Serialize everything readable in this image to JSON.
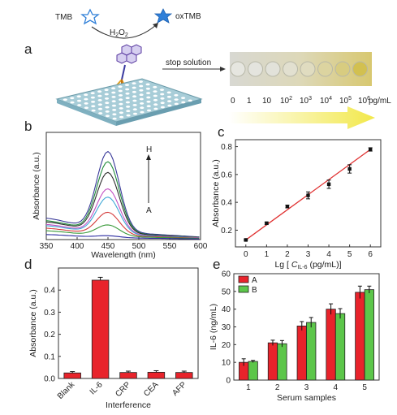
{
  "panels": {
    "a": {
      "letter": "a",
      "tmb": "TMB",
      "oxtmb": "oxTMB",
      "h2o2_h": "H",
      "h2o2_sub1": "2",
      "h2o2_o": "O",
      "h2o2_sub2": "2",
      "stop_solution": "stop solution",
      "concentrations": [
        "0",
        "1",
        "10",
        "10",
        "10",
        "10",
        "10",
        "10"
      ],
      "concentration_exps": [
        "",
        "",
        "",
        "2",
        "3",
        "4",
        "5",
        "6"
      ],
      "unit": "pg/mL",
      "colors": {
        "accent_arrow": "#f2e84a",
        "plate": "#a8cdd8"
      }
    },
    "b": {
      "letter": "b"
    },
    "c": {
      "letter": "c"
    },
    "d": {
      "letter": "d"
    },
    "e": {
      "letter": "e"
    }
  },
  "chart_data": [
    {
      "id": "b",
      "type": "line",
      "xlabel": "Wavelength (nm)",
      "ylabel": "Absorbance (a.u.)",
      "xlim": [
        350,
        600
      ],
      "ylim": [
        0,
        0.85
      ],
      "xticks": [
        350,
        400,
        450,
        500,
        550,
        600
      ],
      "annotation_top": "H",
      "annotation_bottom": "A",
      "peak_x": 450,
      "series": [
        {
          "color": "#3a3a9a",
          "peak": 0.78,
          "base": 0.17
        },
        {
          "color": "#1f8a3a",
          "peak": 0.69,
          "base": 0.15
        },
        {
          "color": "#2f2f2f",
          "peak": 0.6,
          "base": 0.14
        },
        {
          "color": "#c24fc2",
          "peak": 0.46,
          "base": 0.12
        },
        {
          "color": "#3fa8d6",
          "peak": 0.39,
          "base": 0.11
        },
        {
          "color": "#d43a3a",
          "peak": 0.26,
          "base": 0.09
        },
        {
          "color": "#3a9a3a",
          "peak": 0.15,
          "base": 0.07
        },
        {
          "color": "#2a2aa0",
          "peak": 0.05,
          "base": 0.04
        }
      ]
    },
    {
      "id": "c",
      "type": "scatter",
      "xlabel_prefix": "Lg [ ",
      "xlabel_c": "C",
      "xlabel_sub": "IL-6",
      "xlabel_suffix": " (pg/mL)]",
      "ylabel": "Absorbance (a.u.)",
      "xlim": [
        -0.5,
        6.5
      ],
      "ylim": [
        0.08,
        0.85
      ],
      "xticks": [
        0,
        1,
        2,
        3,
        4,
        5,
        6
      ],
      "yticks": [
        0.2,
        0.4,
        0.6,
        0.8
      ],
      "x": [
        0,
        1,
        2,
        3,
        4,
        5,
        6
      ],
      "y": [
        0.13,
        0.25,
        0.37,
        0.45,
        0.53,
        0.64,
        0.78
      ],
      "err": [
        0.005,
        0.008,
        0.01,
        0.025,
        0.03,
        0.03,
        0.012
      ],
      "fit": {
        "x": [
          0,
          6
        ],
        "y": [
          0.13,
          0.78
        ],
        "color": "#e03030"
      }
    },
    {
      "id": "d",
      "type": "bar",
      "xlabel": "Interference",
      "ylabel": "Absorbance (a.u.)",
      "ylim": [
        0,
        0.5
      ],
      "yticks": [
        0.0,
        0.1,
        0.2,
        0.3,
        0.4
      ],
      "categories": [
        "Blank",
        "IL-6",
        "CRP",
        "CEA",
        "AFP"
      ],
      "values": [
        0.025,
        0.445,
        0.027,
        0.028,
        0.027
      ],
      "errors": [
        0.006,
        0.013,
        0.006,
        0.007,
        0.006
      ],
      "color": "#e8232b"
    },
    {
      "id": "e",
      "type": "bar",
      "xlabel": "Serum samples",
      "ylabel": "IL-6 (ng/mL)",
      "ylim": [
        0,
        60
      ],
      "yticks": [
        0,
        10,
        20,
        30,
        40,
        50,
        60
      ],
      "categories": [
        "1",
        "2",
        "3",
        "4",
        "5"
      ],
      "series": [
        {
          "name": "A",
          "color": "#e8232b",
          "values": [
            10,
            21,
            30.5,
            40,
            49.5
          ],
          "errors": [
            2,
            1.5,
            2.5,
            3,
            3.5
          ]
        },
        {
          "name": "B",
          "color": "#5cc64a",
          "values": [
            10.5,
            20.5,
            32.5,
            37.5,
            51
          ],
          "errors": [
            0.6,
            1.8,
            2.8,
            2.8,
            2
          ]
        }
      ],
      "legend_position": "top-left"
    }
  ]
}
